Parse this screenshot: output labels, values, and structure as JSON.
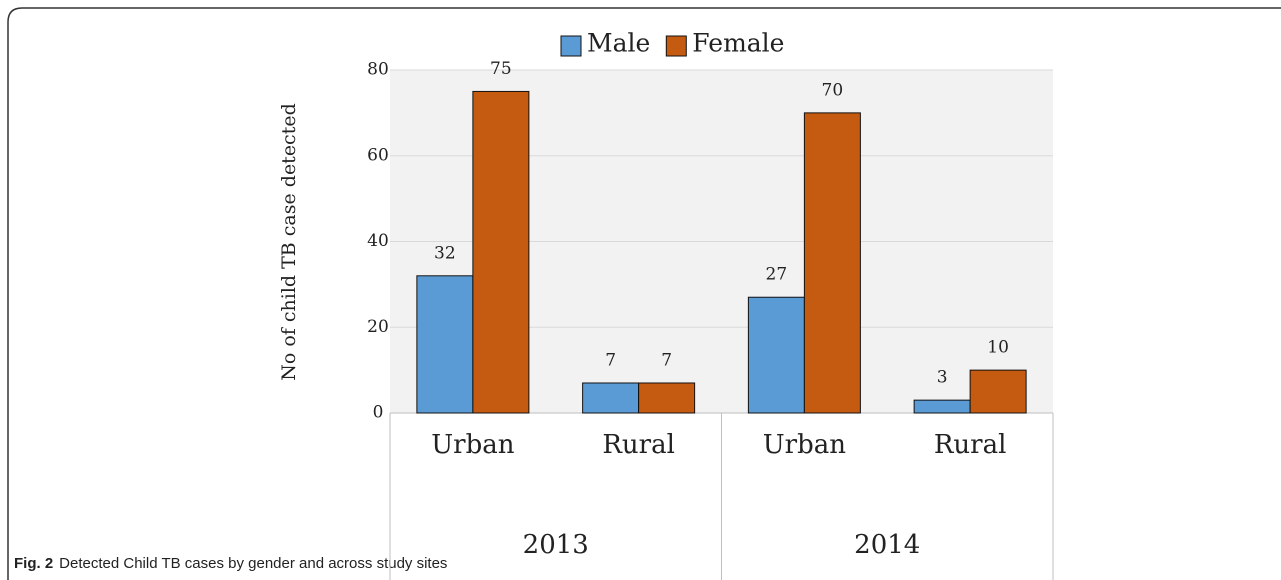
{
  "chart_data": {
    "type": "bar",
    "ylabel": "No of child TB case detected",
    "categories": [
      "Urban",
      "Rural",
      "Urban",
      "Rural"
    ],
    "groups": [
      "2013",
      "2014"
    ],
    "series": [
      {
        "name": "Male",
        "color": "#5b9bd5",
        "values": [
          32,
          7,
          27,
          3
        ]
      },
      {
        "name": "Female",
        "color": "#c55a11",
        "values": [
          75,
          7,
          70,
          10
        ]
      }
    ],
    "ylim": [
      0,
      80
    ],
    "yticks": [
      0,
      20,
      40,
      60,
      80
    ],
    "grid": true,
    "legend": "top"
  },
  "caption": {
    "label": "Fig. 2",
    "text": "Detected Child TB cases by gender and across study sites"
  }
}
